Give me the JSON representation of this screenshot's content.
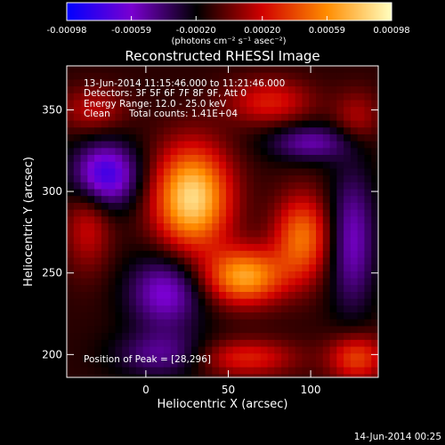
{
  "chart_data": {
    "type": "heatmap",
    "title": "Reconstructed RHESSI Image",
    "xlabel": "Heliocentric X (arcsec)",
    "ylabel": "Heliocentric Y (arcsec)",
    "xlim": [
      -48,
      141
    ],
    "ylim": [
      186,
      377
    ],
    "x_ticks": [
      0,
      50,
      100
    ],
    "y_ticks": [
      200,
      250,
      300,
      350
    ],
    "colorbar": {
      "min": -0.00098,
      "max": 0.00098,
      "tick_values": [
        -0.00098,
        -0.00059,
        -0.0002,
        0.0002,
        0.00059,
        0.00098
      ],
      "tick_labels": [
        "-0.00098",
        "-0.00059",
        "-0.00020",
        "0.00020",
        "0.00059",
        "0.00098"
      ],
      "unit_label": "(photons cm⁻² s⁻¹ asec⁻²)",
      "colors": [
        "#0000ff",
        "#7a00d0",
        "#000000",
        "#d00000",
        "#ff8c00",
        "#ffffc0"
      ]
    },
    "sources": [
      {
        "x": 28,
        "y": 296,
        "sx": 16,
        "sy": 22,
        "value": 0.00098
      },
      {
        "x": 60,
        "y": 248,
        "sx": 17,
        "sy": 12,
        "value": 0.00078
      },
      {
        "x": 95,
        "y": 272,
        "sx": 12,
        "sy": 18,
        "value": 0.00062
      },
      {
        "x": 75,
        "y": 355,
        "sx": 18,
        "sy": 10,
        "value": 0.00038
      },
      {
        "x": -35,
        "y": 280,
        "sx": 10,
        "sy": 20,
        "value": 0.00032
      },
      {
        "x": -32,
        "y": 350,
        "sx": 14,
        "sy": 10,
        "value": 0.00028
      },
      {
        "x": 128,
        "y": 198,
        "sx": 12,
        "sy": 10,
        "value": 0.0005
      },
      {
        "x": 60,
        "y": 198,
        "sx": 22,
        "sy": 8,
        "value": 0.0004
      },
      {
        "x": 128,
        "y": 345,
        "sx": 10,
        "sy": 12,
        "value": 0.00026
      },
      {
        "x": -25,
        "y": 310,
        "sx": 14,
        "sy": 14,
        "value": -0.0007
      },
      {
        "x": 12,
        "y": 238,
        "sx": 16,
        "sy": 16,
        "value": -0.0005
      },
      {
        "x": 125,
        "y": 270,
        "sx": 10,
        "sy": 30,
        "value": -0.00045
      },
      {
        "x": 100,
        "y": 330,
        "sx": 18,
        "sy": 8,
        "value": -0.0004
      },
      {
        "x": 10,
        "y": 200,
        "sx": 20,
        "sy": 10,
        "value": -0.00035
      }
    ]
  },
  "annotations": {
    "time_range": "13-Jun-2014 11:15:46.000 to 11:21:46.000",
    "detectors": "Detectors: 3F 5F 6F 7F 8F 9F, Att 0",
    "energy_range": "Energy Range: 12.0 - 25.0 keV",
    "algorithm": "Clean",
    "total_counts": "Total counts: 1.41E+04",
    "peak": "Position of Peak = [28,296]"
  },
  "footer": {
    "date": "14-Jun-2014 00:25"
  }
}
